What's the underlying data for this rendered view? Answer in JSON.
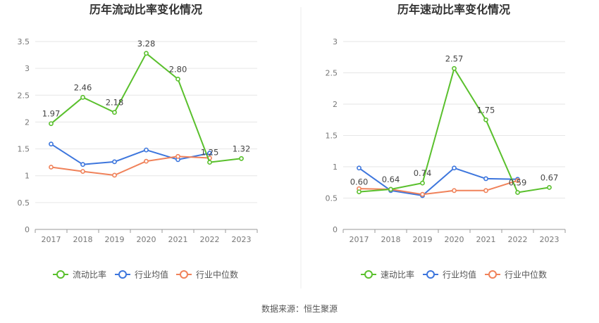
{
  "chart_data": [
    {
      "type": "line",
      "title": "历年流动比率变化情况",
      "categories": [
        "2017",
        "2018",
        "2019",
        "2020",
        "2021",
        "2022",
        "2023"
      ],
      "ylim": [
        0,
        3.5
      ],
      "yticks": [
        "0",
        "0.5",
        "1",
        "1.5",
        "2",
        "2.5",
        "3",
        "3.5"
      ],
      "grid": true,
      "legend_position": "bottom",
      "series": [
        {
          "name": "流动比率",
          "color": "#5ac02d",
          "values": [
            1.97,
            2.46,
            2.18,
            3.28,
            2.8,
            1.25,
            1.32
          ],
          "labels": [
            "1.97",
            "2.46",
            "2.18",
            "3.28",
            "2.80",
            "1.25",
            "1.32"
          ]
        },
        {
          "name": "行业均值",
          "color": "#3d76dd",
          "values": [
            1.59,
            1.21,
            1.26,
            1.48,
            1.3,
            1.42,
            null
          ]
        },
        {
          "name": "行业中位数",
          "color": "#f0825a",
          "values": [
            1.16,
            1.08,
            1.01,
            1.27,
            1.36,
            1.33,
            null
          ]
        }
      ]
    },
    {
      "type": "line",
      "title": "历年速动比率变化情况",
      "categories": [
        "2017",
        "2018",
        "2019",
        "2020",
        "2021",
        "2022",
        "2023"
      ],
      "ylim": [
        0,
        3
      ],
      "yticks": [
        "0",
        "0.5",
        "1",
        "1.5",
        "2",
        "2.5",
        "3"
      ],
      "grid": true,
      "legend_position": "bottom",
      "series": [
        {
          "name": "速动比率",
          "color": "#5ac02d",
          "values": [
            0.6,
            0.64,
            0.74,
            2.57,
            1.75,
            0.59,
            0.67
          ],
          "labels": [
            "0.60",
            "0.64",
            "0.74",
            "2.57",
            "1.75",
            "0.59",
            "0.67"
          ]
        },
        {
          "name": "行业均值",
          "color": "#3d76dd",
          "values": [
            0.98,
            0.62,
            0.54,
            0.98,
            0.81,
            0.8,
            null
          ]
        },
        {
          "name": "行业中位数",
          "color": "#f0825a",
          "values": [
            0.65,
            0.64,
            0.56,
            0.62,
            0.62,
            0.78,
            null
          ]
        }
      ]
    }
  ],
  "source_text": "数据来源：恒生聚源"
}
